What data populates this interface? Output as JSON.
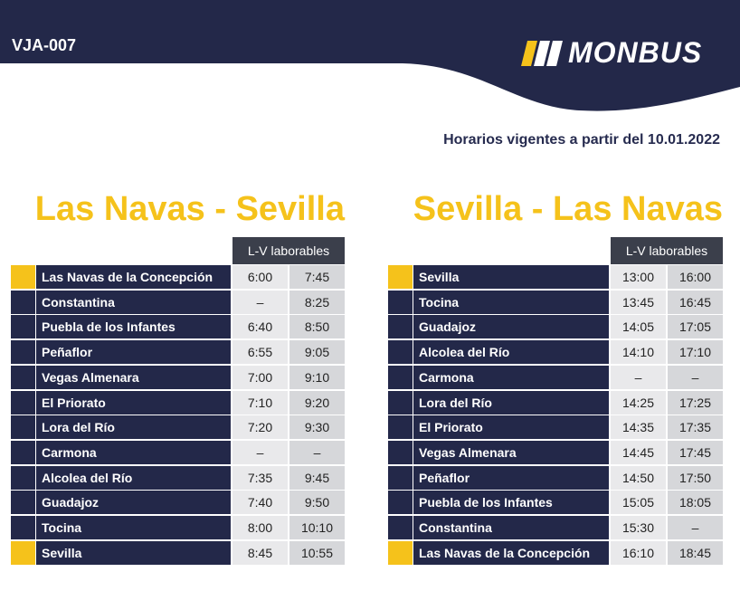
{
  "header": {
    "code": "VJA-007",
    "logo": "MONBUS",
    "validity": "Horarios vigentes a partir del 10.01.2022"
  },
  "tables": [
    {
      "title": "Las Navas - Sevilla",
      "column_header": "L-V laborables",
      "rows": [
        {
          "stop": "Las Navas de la Concepción",
          "times": [
            "6:00",
            "7:45"
          ]
        },
        {
          "stop": "Constantina",
          "times": [
            "–",
            "8:25"
          ]
        },
        {
          "stop": "Puebla de los Infantes",
          "times": [
            "6:40",
            "8:50"
          ]
        },
        {
          "stop": "Peñaflor",
          "times": [
            "6:55",
            "9:05"
          ]
        },
        {
          "stop": "Vegas Almenara",
          "times": [
            "7:00",
            "9:10"
          ]
        },
        {
          "stop": "El Priorato",
          "times": [
            "7:10",
            "9:20"
          ]
        },
        {
          "stop": "Lora del Río",
          "times": [
            "7:20",
            "9:30"
          ]
        },
        {
          "stop": "Carmona",
          "times": [
            "–",
            "–"
          ]
        },
        {
          "stop": "Alcolea del Río",
          "times": [
            "7:35",
            "9:45"
          ]
        },
        {
          "stop": "Guadajoz",
          "times": [
            "7:40",
            "9:50"
          ]
        },
        {
          "stop": "Tocina",
          "times": [
            "8:00",
            "10:10"
          ]
        },
        {
          "stop": "Sevilla",
          "times": [
            "8:45",
            "10:55"
          ]
        }
      ]
    },
    {
      "title": "Sevilla - Las Navas",
      "column_header": "L-V laborables",
      "rows": [
        {
          "stop": "Sevilla",
          "times": [
            "13:00",
            "16:00"
          ]
        },
        {
          "stop": "Tocina",
          "times": [
            "13:45",
            "16:45"
          ]
        },
        {
          "stop": "Guadajoz",
          "times": [
            "14:05",
            "17:05"
          ]
        },
        {
          "stop": "Alcolea del Río",
          "times": [
            "14:10",
            "17:10"
          ]
        },
        {
          "stop": "Carmona",
          "times": [
            "–",
            "–"
          ]
        },
        {
          "stop": "Lora del Río",
          "times": [
            "14:25",
            "17:25"
          ]
        },
        {
          "stop": "El Priorato",
          "times": [
            "14:35",
            "17:35"
          ]
        },
        {
          "stop": "Vegas Almenara",
          "times": [
            "14:45",
            "17:45"
          ]
        },
        {
          "stop": "Peñaflor",
          "times": [
            "14:50",
            "17:50"
          ]
        },
        {
          "stop": "Puebla de los Infantes",
          "times": [
            "15:05",
            "18:05"
          ]
        },
        {
          "stop": "Constantina",
          "times": [
            "15:30",
            "–"
          ]
        },
        {
          "stop": "Las Navas de la Concepción",
          "times": [
            "16:10",
            "18:45"
          ]
        }
      ]
    }
  ]
}
